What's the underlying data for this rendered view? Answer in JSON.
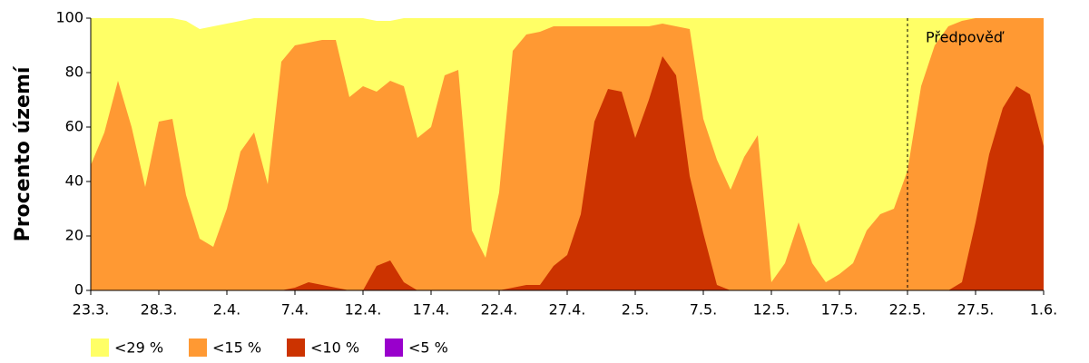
{
  "chart_data": {
    "type": "area",
    "y_label": "Procento území",
    "categories": [
      "23.3.",
      null,
      null,
      null,
      null,
      "28.3.",
      null,
      null,
      null,
      null,
      "2.4.",
      null,
      null,
      null,
      null,
      "7.4.",
      null,
      null,
      null,
      null,
      "12.4.",
      null,
      null,
      null,
      null,
      "17.4.",
      null,
      null,
      null,
      null,
      "22.4.",
      null,
      null,
      null,
      null,
      "27.4.",
      null,
      null,
      null,
      null,
      "2.5.",
      null,
      null,
      null,
      null,
      "7.5.",
      null,
      null,
      null,
      null,
      "12.5.",
      null,
      null,
      null,
      null,
      "17.5.",
      null,
      null,
      null,
      null,
      "22.5.",
      null,
      null,
      null,
      null,
      "27.5.",
      null,
      null,
      null,
      null,
      "1.6."
    ],
    "series": [
      {
        "name": "<29 %",
        "color": "#ffff66",
        "values": [
          100,
          100,
          100,
          100,
          100,
          100,
          100,
          99,
          96,
          97,
          98,
          99,
          100,
          100,
          100,
          100,
          100,
          100,
          100,
          100,
          100,
          99,
          99,
          100,
          100,
          100,
          100,
          100,
          100,
          100,
          100,
          100,
          100,
          100,
          100,
          100,
          100,
          100,
          100,
          100,
          100,
          100,
          100,
          100,
          100,
          100,
          100,
          100,
          100,
          100,
          100,
          100,
          100,
          100,
          100,
          100,
          100,
          100,
          100,
          100,
          100,
          100,
          100,
          100,
          100,
          100,
          100,
          100,
          100,
          100,
          100
        ]
      },
      {
        "name": "<15 %",
        "color": "#ff9933",
        "values": [
          46,
          58,
          77,
          60,
          38,
          62,
          63,
          35,
          19,
          16,
          30,
          51,
          58,
          39,
          84,
          90,
          91,
          92,
          92,
          71,
          75,
          73,
          77,
          75,
          56,
          60,
          79,
          81,
          22,
          12,
          36,
          88,
          94,
          95,
          97,
          97,
          97,
          97,
          97,
          97,
          97,
          97,
          98,
          97,
          96,
          63,
          48,
          37,
          49,
          57,
          3,
          10,
          25,
          10,
          3,
          6,
          10,
          22,
          28,
          30,
          44,
          75,
          90,
          97,
          99,
          100,
          100,
          100,
          100,
          100,
          100
        ]
      },
      {
        "name": "<10 %",
        "color": "#cc3300",
        "values": [
          0,
          0,
          0,
          0,
          0,
          0,
          0,
          0,
          0,
          0,
          0,
          0,
          0,
          0,
          0,
          1,
          3,
          2,
          1,
          0,
          0,
          9,
          11,
          3,
          0,
          0,
          0,
          0,
          0,
          0,
          0,
          1,
          2,
          2,
          9,
          13,
          28,
          62,
          74,
          73,
          56,
          70,
          86,
          79,
          42,
          21,
          2,
          0,
          0,
          0,
          0,
          0,
          0,
          0,
          0,
          0,
          0,
          0,
          0,
          0,
          0,
          0,
          0,
          0,
          3,
          25,
          50,
          67,
          75,
          72,
          53
        ]
      },
      {
        "name": "<5 %",
        "color": "#9900cc",
        "values": [
          0,
          0,
          0,
          0,
          0,
          0,
          0,
          0,
          0,
          0,
          0,
          0,
          0,
          0,
          0,
          0,
          0,
          0,
          0,
          0,
          0,
          0,
          0,
          0,
          0,
          0,
          0,
          0,
          0,
          0,
          0,
          0,
          0,
          0,
          0,
          0,
          0,
          0,
          0,
          0,
          0,
          0,
          0,
          0,
          0,
          0,
          0,
          0,
          0,
          0,
          0,
          0,
          0,
          0,
          0,
          0,
          0,
          0,
          0,
          0,
          0,
          0,
          0,
          0,
          0,
          0,
          0,
          0,
          0,
          0,
          0
        ]
      }
    ],
    "ylim": [
      0,
      100
    ],
    "yticks": [
      0,
      20,
      40,
      60,
      80,
      100
    ],
    "forecast": {
      "label": "Předpověď",
      "start": "22.5."
    }
  }
}
